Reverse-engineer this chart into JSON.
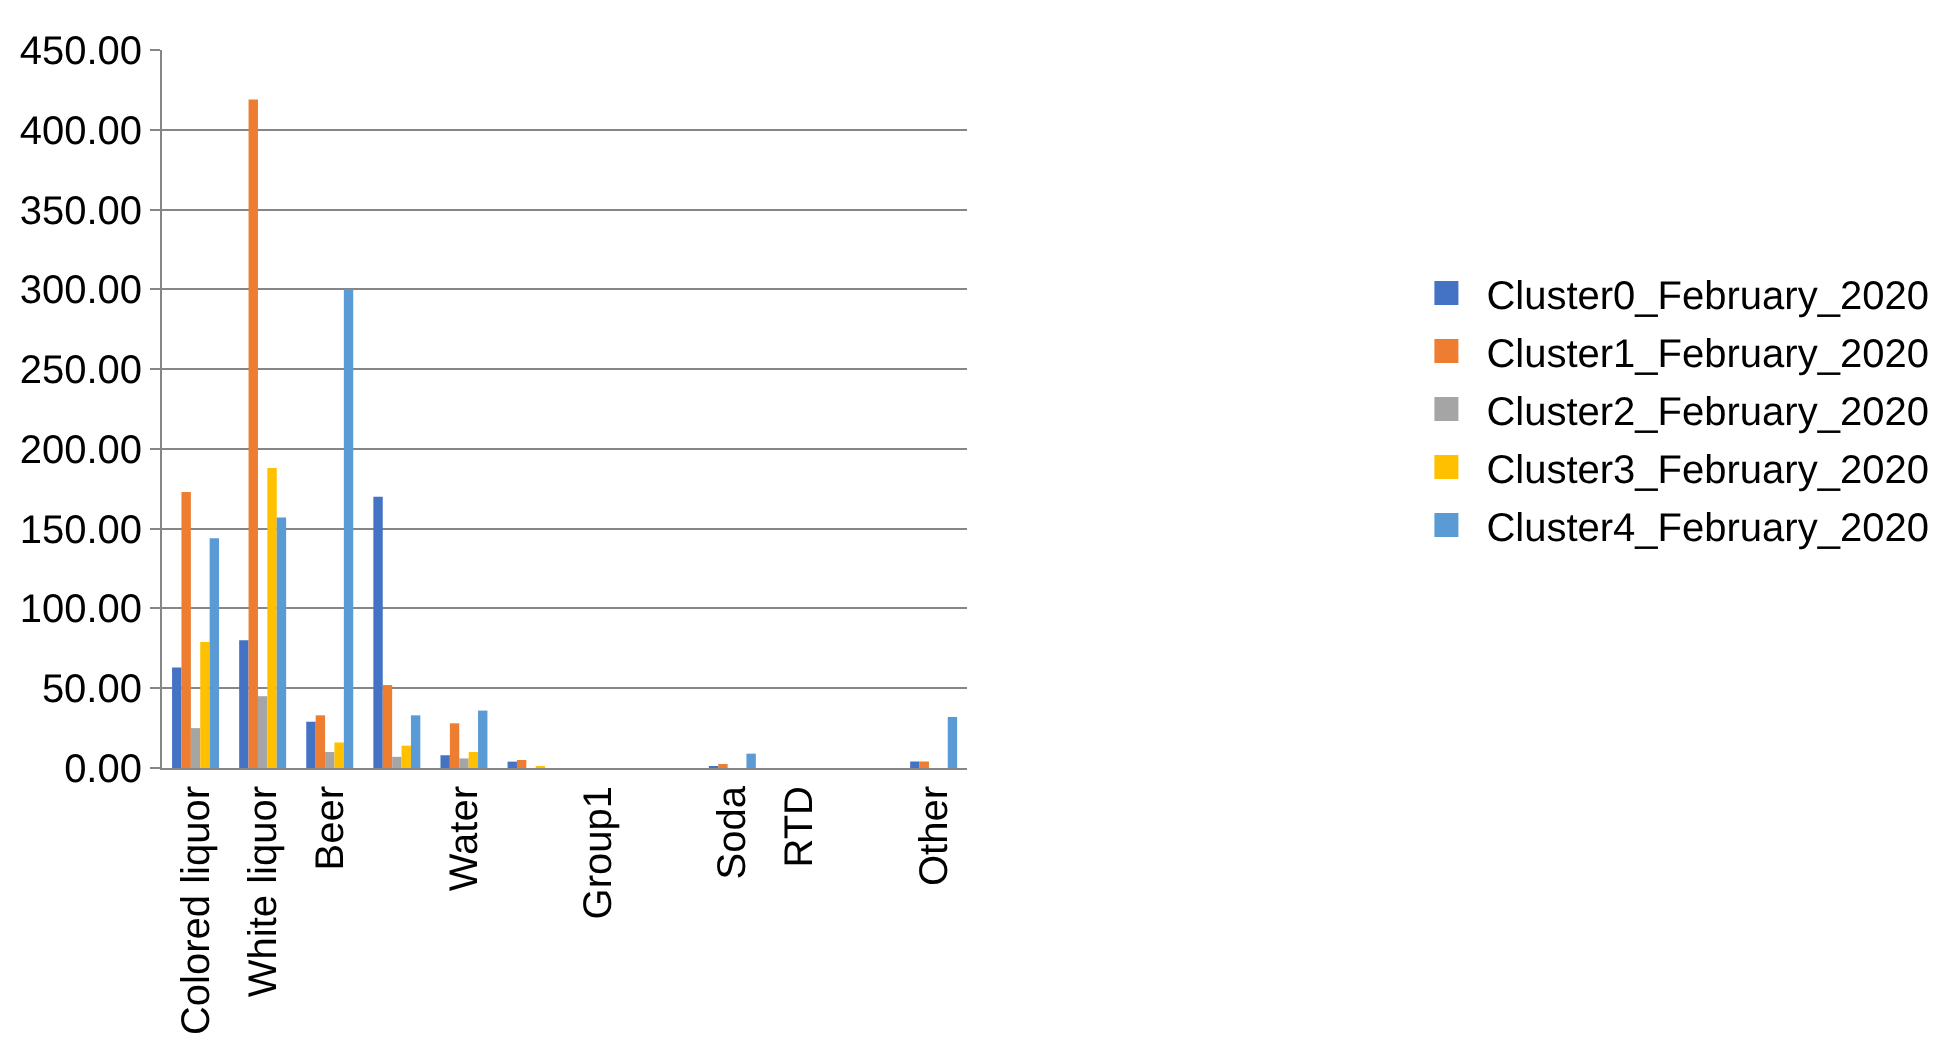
{
  "chart_data": {
    "type": "bar",
    "categories": [
      "Colored liquor",
      "White liquor",
      "Beer",
      null,
      "Water",
      null,
      "Group1",
      null,
      "Soda",
      "RTD",
      null,
      "Other"
    ],
    "series": [
      {
        "name": "Cluster0_February_2020",
        "color": "#4472c4",
        "values": [
          63,
          80,
          29,
          170,
          8,
          4,
          0,
          0,
          1,
          0,
          0,
          4
        ]
      },
      {
        "name": "Cluster1_February_2020",
        "color": "#ed7d31",
        "values": [
          173,
          419,
          33,
          52,
          28,
          5,
          0,
          0,
          2,
          0,
          0,
          4
        ]
      },
      {
        "name": "Cluster2_February_2020",
        "color": "#a5a5a5",
        "values": [
          25,
          45,
          10,
          7,
          6,
          0,
          0,
          0,
          0,
          0,
          0,
          0
        ]
      },
      {
        "name": "Cluster3_February_2020",
        "color": "#ffc000",
        "values": [
          79,
          188,
          16,
          14,
          10,
          1,
          0,
          0,
          0,
          0,
          0,
          0
        ]
      },
      {
        "name": "Cluster4_February_2020",
        "color": "#5b9bd5",
        "values": [
          144,
          157,
          300,
          33,
          36,
          0,
          0,
          0,
          9,
          0,
          0,
          32
        ]
      }
    ],
    "ylim": [
      0,
      450
    ],
    "yticks": [
      {
        "value": 0,
        "label": "0.00"
      },
      {
        "value": 50,
        "label": "50.00"
      },
      {
        "value": 100,
        "label": "100.00"
      },
      {
        "value": 150,
        "label": "150.00"
      },
      {
        "value": 200,
        "label": "200.00"
      },
      {
        "value": 250,
        "label": "250.00"
      },
      {
        "value": 300,
        "label": "300.00"
      },
      {
        "value": 350,
        "label": "350.00"
      },
      {
        "value": 400,
        "label": "400.00"
      },
      {
        "value": 450,
        "label": "450.00"
      }
    ],
    "grid": "y",
    "legend": "right"
  }
}
